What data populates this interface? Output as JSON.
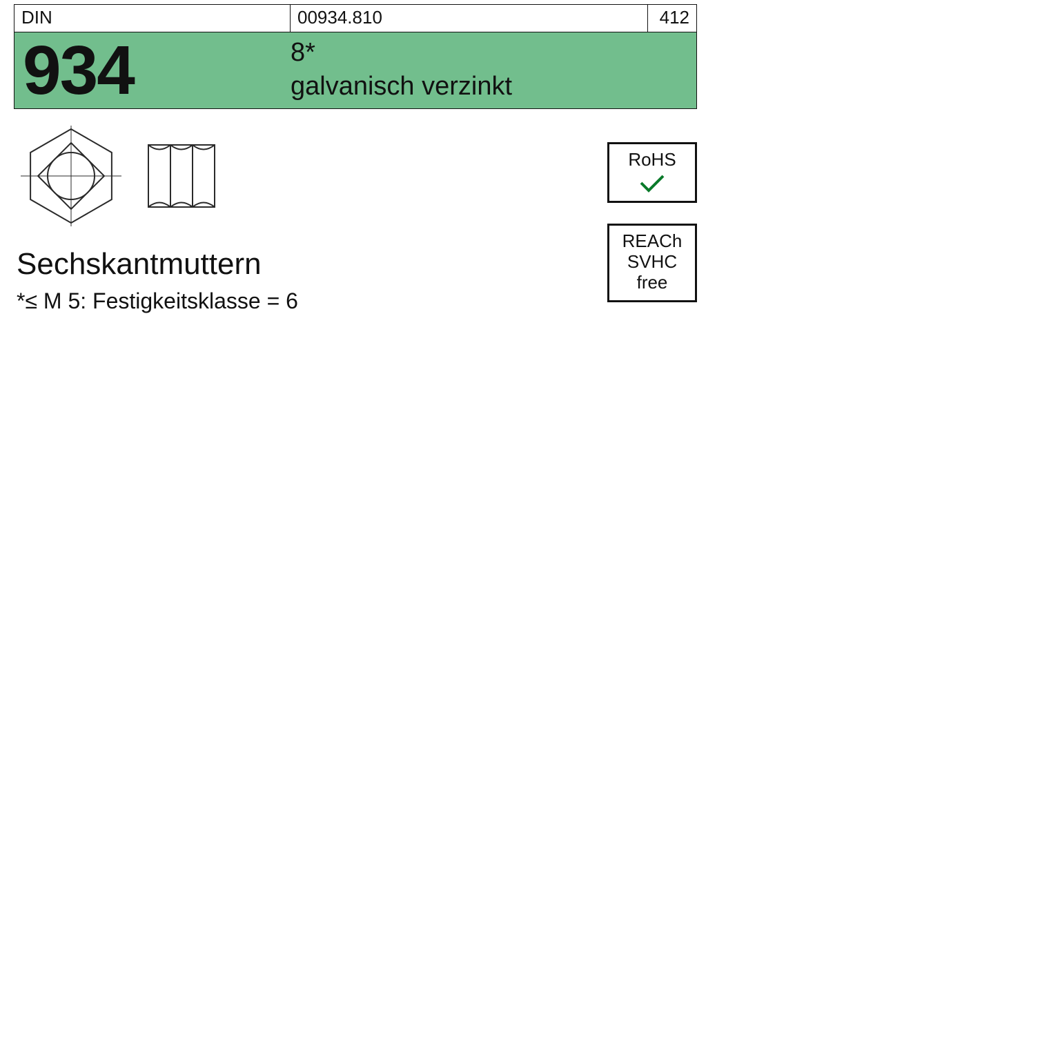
{
  "colors": {
    "page_bg": "#ffffff",
    "ink": "#111111",
    "band_bg": "#72be8d",
    "stroke": "#2a2a2a"
  },
  "topbar": {
    "standard_label": "DIN",
    "code": "00934.810",
    "page_ref": "412"
  },
  "band": {
    "number": "934",
    "grade": "8*",
    "finish": "galvanisch verzinkt"
  },
  "drawing": {
    "hex_top": {
      "stroke": "#2a2a2a",
      "stroke_width": 2,
      "outer_r": 68,
      "inner_square_half": 48,
      "circle_r": 34
    },
    "hex_side": {
      "stroke": "#2a2a2a",
      "stroke_width": 2,
      "width_units": 96,
      "height_units": 90
    }
  },
  "badges": {
    "rohs": {
      "line1": "RoHS",
      "check_color": "#0a7a2a"
    },
    "reach": {
      "line1": "REACh",
      "line2": "SVHC",
      "line3": "free"
    }
  },
  "body": {
    "title": "Sechskantmuttern",
    "note": "*≤ M 5: Festigkeitsklasse = 6"
  }
}
